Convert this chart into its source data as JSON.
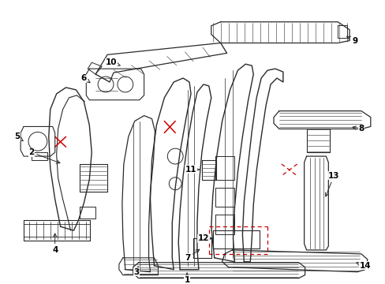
{
  "background_color": "#ffffff",
  "line_color": "#2a2a2a",
  "red_color": "#cc0000",
  "fig_width": 4.89,
  "fig_height": 3.6,
  "dpi": 100
}
